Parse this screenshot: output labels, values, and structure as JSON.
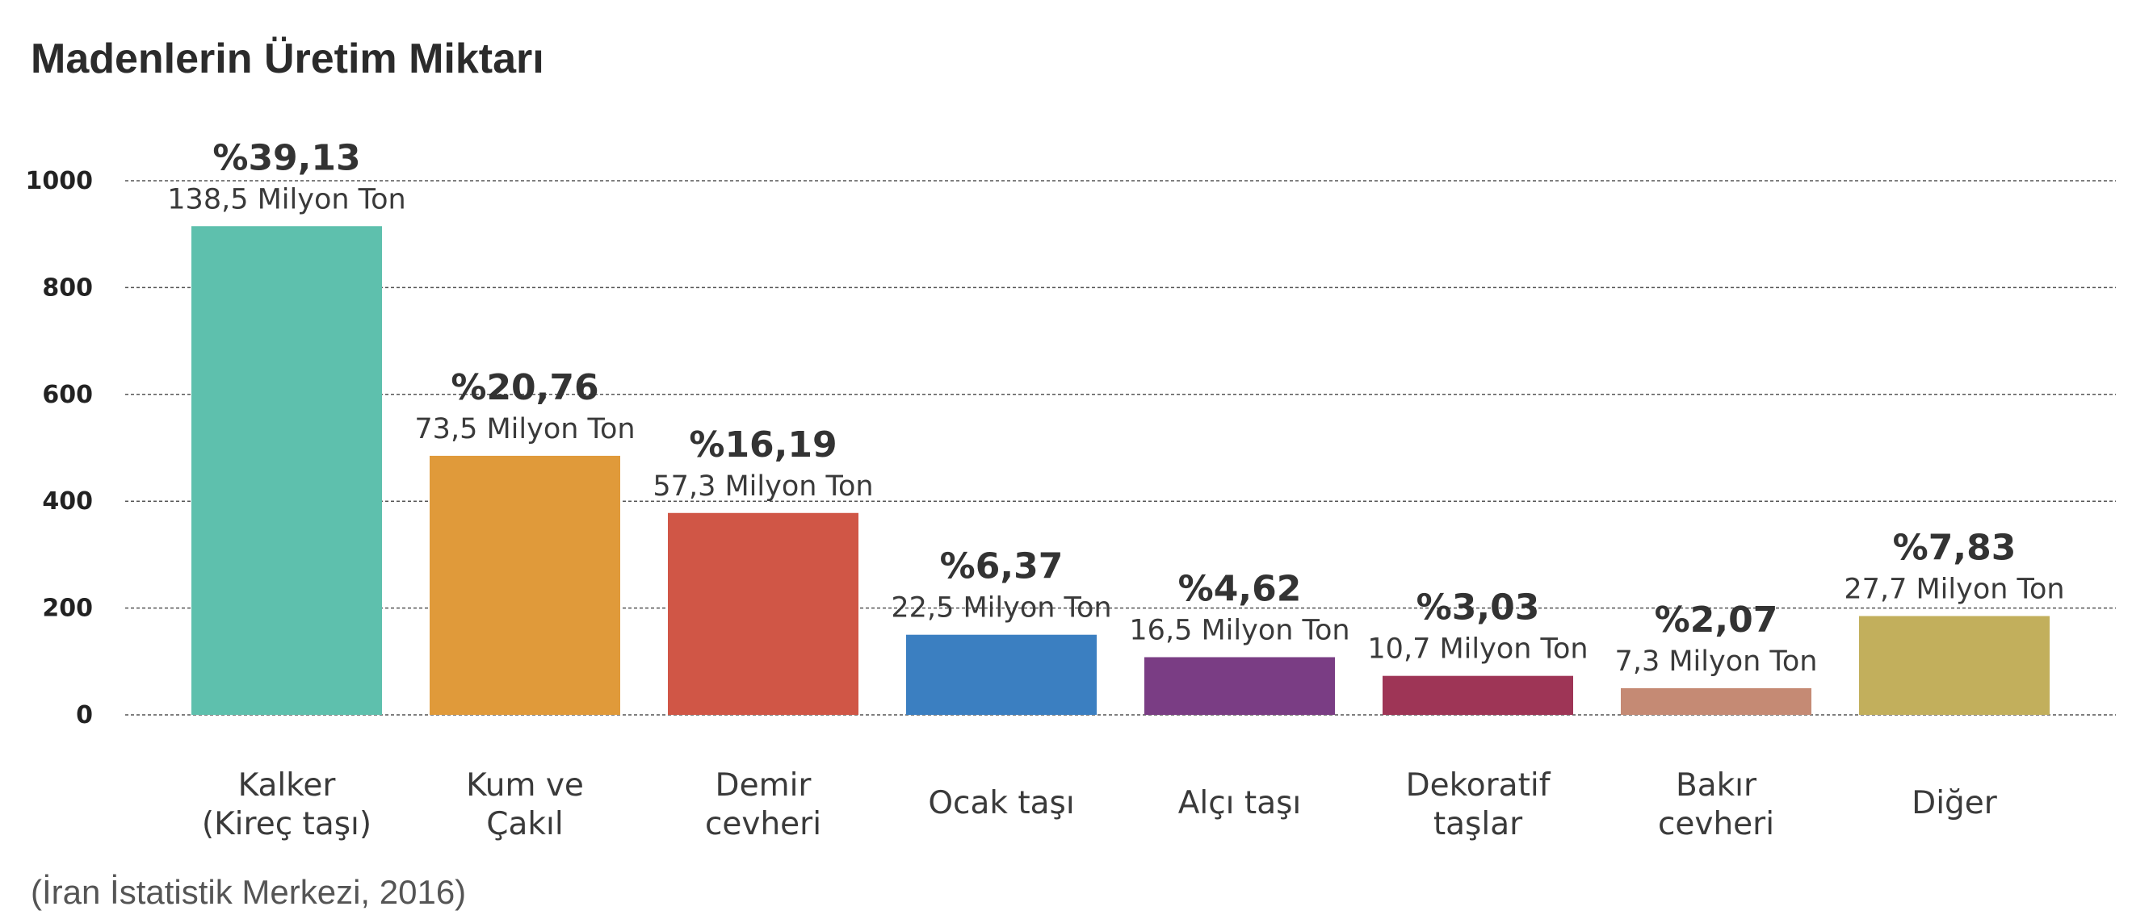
{
  "chart_data": {
    "type": "bar",
    "title": "Madenlerin Üretim Miktarı",
    "source": "(İran İstatistik Merkezi, 2016)",
    "xlabel": "",
    "ylabel": "",
    "ylim": [
      0,
      1000
    ],
    "yticks": [
      0,
      200,
      400,
      600,
      800,
      1000
    ],
    "grid": true,
    "categories": [
      [
        "Kalker",
        "(Kireç taşı)"
      ],
      [
        "Kum ve",
        "Çakıl"
      ],
      [
        "Demir",
        "cevheri"
      ],
      [
        "Ocak taşı"
      ],
      [
        "Alçı taşı"
      ],
      [
        "Dekoratif",
        "taşlar"
      ],
      [
        "Bakır",
        "cevheri"
      ],
      [
        "Diğer"
      ]
    ],
    "values": [
      915,
      485,
      378,
      150,
      108,
      73,
      50,
      185
    ],
    "percent_labels": [
      "%39,13",
      "%20,76",
      "%16,19",
      "%6,37",
      "%4,62",
      "%3,03",
      "%2,07",
      "%7,83"
    ],
    "amount_labels": [
      "138,5 Milyon Ton",
      "73,5 Milyon Ton",
      "57,3 Milyon Ton",
      "22,5 Milyon Ton",
      "16,5 Milyon Ton",
      "10,7 Milyon Ton",
      "7,3 Milyon Ton",
      "27,7 Milyon Ton"
    ],
    "colors": [
      "#5ec0ad",
      "#e09a3a",
      "#d05646",
      "#3b7fc1",
      "#7a3d84",
      "#9e3556",
      "#c58a74",
      "#c2af5c"
    ]
  }
}
